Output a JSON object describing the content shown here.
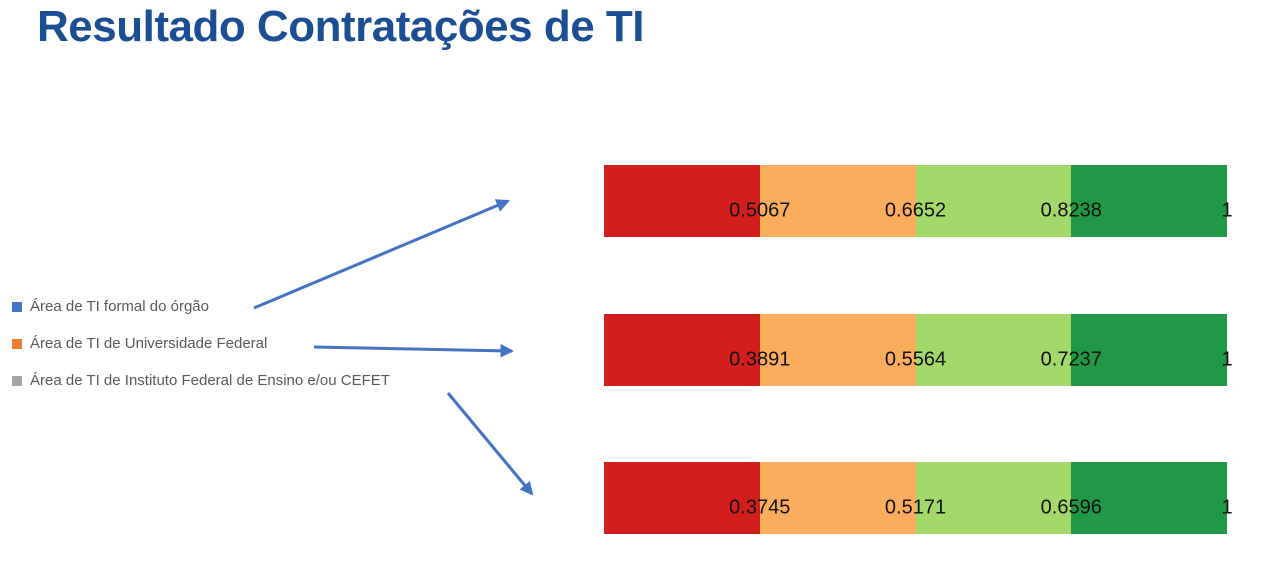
{
  "title": "Resultado Contratações de TI",
  "legend": {
    "items": [
      {
        "label": "Área de TI formal do órgão",
        "color": "#4472C4"
      },
      {
        "label": "Área de TI de Universidade Federal",
        "color": "#ED7D31"
      },
      {
        "label": "Área de TI de Instituto Federal de Ensino e/ou CEFET",
        "color": "#A5A5A5"
      }
    ]
  },
  "chart_data": {
    "type": "bar",
    "orientation": "horizontal",
    "subtype": "equal-width red/orange/light-green/dark-green scale bars; labels mark cumulative threshold values at segment boundaries",
    "title": "Resultado Contratações de TI",
    "legend_position": "left",
    "grid": false,
    "axis_labels": false,
    "segment_colors": [
      "#D31E1E",
      "#FBAD5E",
      "#A3D86A",
      "#209845"
    ],
    "bars": [
      {
        "series": "Área de TI formal do órgão",
        "boundaries": [
          0.5067,
          0.6652,
          0.8238,
          1
        ],
        "boundary_labels": [
          "0.5067",
          "0.6652",
          "0.8238",
          "1"
        ]
      },
      {
        "series": "Área de TI de Universidade Federal",
        "boundaries": [
          0.3891,
          0.5564,
          0.7237,
          1
        ],
        "boundary_labels": [
          "0.3891",
          "0.5564",
          "0.7237",
          "1"
        ]
      },
      {
        "series": "Área de TI de Instituto Federal de Ensino e/ou CEFET",
        "boundaries": [
          0.3745,
          0.5171,
          0.6596,
          1
        ],
        "boundary_labels": [
          "0.3745",
          "0.5171",
          "0.6596",
          "1"
        ]
      }
    ]
  },
  "colors": {
    "title_text": "#1B4E92",
    "arrow": "#4472C4",
    "legend_text": "#595959",
    "value_label_text": "#111111"
  }
}
